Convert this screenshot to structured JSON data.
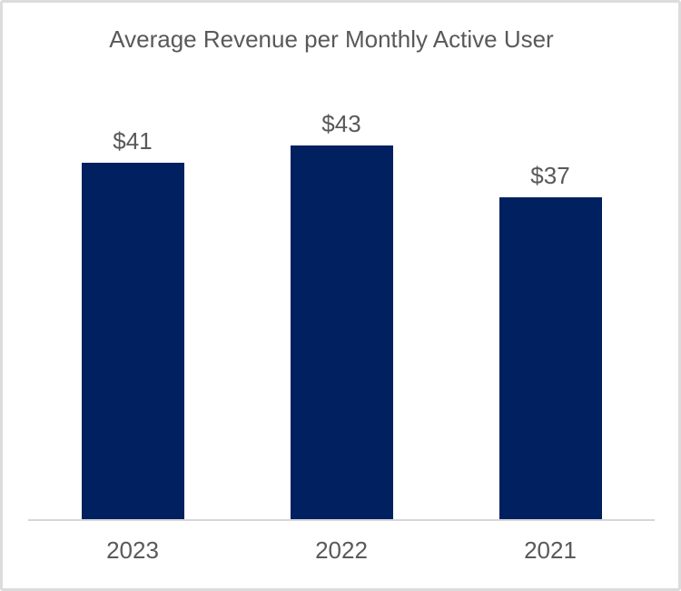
{
  "window": {
    "background_color": "#ffffff",
    "frame_border_color": "#dcdcdc"
  },
  "chart_data": {
    "type": "bar",
    "title": "Average Revenue per Monthly Active User",
    "categories": [
      "2023",
      "2022",
      "2021"
    ],
    "values": [
      41,
      43,
      37
    ],
    "data_labels": [
      "$41",
      "$43",
      "$37"
    ],
    "series_color": "#002060",
    "text_color": "#595959",
    "axis_line_color": "#d6d6d6",
    "orientation": "vertical",
    "grid": false,
    "legend": false,
    "xlabel": "",
    "ylabel": ""
  }
}
